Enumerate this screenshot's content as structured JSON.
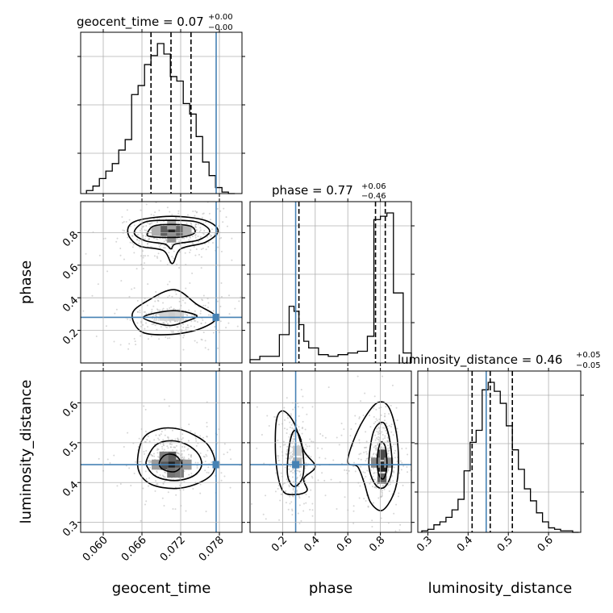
{
  "chart_data": {
    "type": "corner",
    "parameters": [
      "geocent_time",
      "phase",
      "luminosity_distance"
    ],
    "truths": {
      "geocent_time": 0.0775,
      "phase": 0.28,
      "luminosity_distance": 0.445
    },
    "titles": [
      {
        "param": "geocent_time",
        "text": "geocent_time = 0.07",
        "sup": "+0.00",
        "sub": "−0.00"
      },
      {
        "param": "phase",
        "text": "phase = 0.77",
        "sup": "+0.06",
        "sub": "−0.46"
      },
      {
        "param": "luminosity_distance",
        "text": "luminosity_distance = 0.46",
        "sup": "+0.05",
        "sub": "−0.05"
      }
    ],
    "xlabels": [
      "geocent_time",
      "phase",
      "luminosity_distance"
    ],
    "ylabels": [
      "phase",
      "luminosity_distance"
    ],
    "axes": {
      "geocent_time": {
        "range": [
          0.0565,
          0.0815
        ],
        "ticks": [
          0.06,
          0.066,
          0.072,
          0.078
        ],
        "tick_labels": [
          "0.060",
          "0.066",
          "0.072",
          "0.078"
        ]
      },
      "phase": {
        "range": [
          0.0,
          0.99
        ],
        "ticks": [
          0.2,
          0.4,
          0.6,
          0.8
        ],
        "tick_labels": [
          "0.2",
          "0.4",
          "0.6",
          "0.8"
        ]
      },
      "luminosity_distance": {
        "range": [
          0.275,
          0.68
        ],
        "ticks": [
          0.3,
          0.4,
          0.5,
          0.6
        ],
        "tick_labels": [
          "0.3",
          "0.4",
          "0.5",
          "0.6"
        ]
      }
    },
    "marginals": [
      {
        "param": "geocent_time",
        "bin_edges": [
          0.0574,
          0.0584,
          0.0594,
          0.0604,
          0.0614,
          0.0624,
          0.0634,
          0.0644,
          0.0654,
          0.0664,
          0.0674,
          0.0684,
          0.0694,
          0.0704,
          0.0714,
          0.0724,
          0.0734,
          0.0744,
          0.0754,
          0.0764,
          0.0774,
          0.0784,
          0.0794,
          0.0804
        ],
        "counts": [
          0.02,
          0.05,
          0.1,
          0.15,
          0.2,
          0.29,
          0.36,
          0.66,
          0.72,
          0.86,
          0.92,
          1.0,
          0.93,
          0.78,
          0.75,
          0.6,
          0.53,
          0.38,
          0.21,
          0.12,
          0.04,
          0.01,
          0.0
        ],
        "quantiles": [
          0.0674,
          0.0705,
          0.0736
        ]
      },
      {
        "param": "phase",
        "bin_edges": [
          0.0,
          0.06,
          0.12,
          0.18,
          0.24,
          0.27,
          0.3,
          0.33,
          0.36,
          0.42,
          0.48,
          0.54,
          0.6,
          0.66,
          0.72,
          0.76,
          0.8,
          0.84,
          0.88,
          0.94,
          0.99
        ],
        "counts": [
          0.02,
          0.04,
          0.04,
          0.17,
          0.34,
          0.31,
          0.23,
          0.13,
          0.09,
          0.05,
          0.04,
          0.05,
          0.06,
          0.07,
          0.16,
          0.86,
          0.88,
          0.9,
          0.42,
          0.06
        ],
        "quantiles": [
          0.3,
          0.77,
          0.83
        ]
      },
      {
        "param": "luminosity_distance",
        "bin_edges": [
          0.285,
          0.3,
          0.315,
          0.33,
          0.345,
          0.36,
          0.375,
          0.39,
          0.405,
          0.42,
          0.435,
          0.45,
          0.465,
          0.48,
          0.495,
          0.51,
          0.525,
          0.54,
          0.555,
          0.57,
          0.585,
          0.6,
          0.615,
          0.63,
          0.645,
          0.66,
          0.675
        ],
        "counts": [
          0.01,
          0.02,
          0.05,
          0.07,
          0.1,
          0.15,
          0.22,
          0.41,
          0.6,
          0.68,
          0.95,
          1.0,
          0.94,
          0.86,
          0.71,
          0.55,
          0.42,
          0.29,
          0.21,
          0.13,
          0.07,
          0.03,
          0.02,
          0.01,
          0.01,
          0.0
        ],
        "quantiles": [
          0.41,
          0.455,
          0.51
        ]
      }
    ],
    "pairs": [
      {
        "x": "geocent_time",
        "y": "phase",
        "peak_cells": [
          {
            "x": 0.0706,
            "y": 0.81,
            "level": 1.0
          },
          {
            "x": 0.0694,
            "y": 0.81,
            "level": 0.7
          },
          {
            "x": 0.0718,
            "y": 0.81,
            "level": 0.7
          },
          {
            "x": 0.0706,
            "y": 0.77,
            "level": 0.45
          },
          {
            "x": 0.0706,
            "y": 0.85,
            "level": 0.35
          },
          {
            "x": 0.0682,
            "y": 0.81,
            "level": 0.3
          },
          {
            "x": 0.073,
            "y": 0.81,
            "level": 0.3
          },
          {
            "x": 0.0706,
            "y": 0.29,
            "level": 0.15
          },
          {
            "x": 0.0694,
            "y": 0.29,
            "level": 0.12
          },
          {
            "x": 0.0718,
            "y": 0.29,
            "level": 0.12
          }
        ],
        "contours": [
          [
            [
              0.0668,
              0.79
            ],
            [
              0.0678,
              0.84
            ],
            [
              0.0705,
              0.85
            ],
            [
              0.0735,
              0.84
            ],
            [
              0.0742,
              0.8
            ],
            [
              0.0725,
              0.775
            ],
            [
              0.0702,
              0.77
            ],
            [
              0.0675,
              0.775
            ]
          ],
          [
            [
              0.0648,
              0.8
            ],
            [
              0.0665,
              0.865
            ],
            [
              0.0705,
              0.875
            ],
            [
              0.0745,
              0.865
            ],
            [
              0.0765,
              0.81
            ],
            [
              0.0748,
              0.755
            ],
            [
              0.0712,
              0.73
            ],
            [
              0.0705,
              0.7
            ],
            [
              0.0695,
              0.73
            ],
            [
              0.0665,
              0.75
            ]
          ],
          [
            [
              0.0638,
              0.8
            ],
            [
              0.065,
              0.87
            ],
            [
              0.0705,
              0.9
            ],
            [
              0.0758,
              0.875
            ],
            [
              0.0778,
              0.81
            ],
            [
              0.0758,
              0.74
            ],
            [
              0.072,
              0.7
            ],
            [
              0.0707,
              0.61
            ],
            [
              0.0693,
              0.69
            ],
            [
              0.0655,
              0.72
            ]
          ],
          [
            [
              0.0662,
              0.28
            ],
            [
              0.0685,
              0.31
            ],
            [
              0.0715,
              0.32
            ],
            [
              0.0745,
              0.29
            ],
            [
              0.0728,
              0.255
            ],
            [
              0.0705,
              0.23
            ],
            [
              0.0682,
              0.245
            ]
          ],
          [
            [
              0.0645,
              0.3
            ],
            [
              0.0668,
              0.38
            ],
            [
              0.071,
              0.45
            ],
            [
              0.0745,
              0.36
            ],
            [
              0.0775,
              0.28
            ],
            [
              0.075,
              0.21
            ],
            [
              0.0705,
              0.175
            ],
            [
              0.066,
              0.19
            ]
          ]
        ]
      },
      {
        "x": "geocent_time",
        "y": "luminosity_distance",
        "peak_cells": [
          {
            "x": 0.0706,
            "y": 0.445,
            "level": 1.0
          },
          {
            "x": 0.0694,
            "y": 0.445,
            "level": 0.75
          },
          {
            "x": 0.0718,
            "y": 0.445,
            "level": 0.75
          },
          {
            "x": 0.0706,
            "y": 0.465,
            "level": 0.7
          },
          {
            "x": 0.0706,
            "y": 0.425,
            "level": 0.6
          },
          {
            "x": 0.0694,
            "y": 0.465,
            "level": 0.55
          },
          {
            "x": 0.0718,
            "y": 0.425,
            "level": 0.55
          },
          {
            "x": 0.0682,
            "y": 0.445,
            "level": 0.4
          },
          {
            "x": 0.073,
            "y": 0.445,
            "level": 0.4
          }
        ],
        "contours": [
          [
            [
              0.0688,
              0.455
            ],
            [
              0.0697,
              0.47
            ],
            [
              0.0712,
              0.468
            ],
            [
              0.0722,
              0.445
            ],
            [
              0.0712,
              0.428
            ],
            [
              0.0697,
              0.43
            ],
            [
              0.0688,
              0.44
            ]
          ],
          [
            [
              0.0668,
              0.46
            ],
            [
              0.0682,
              0.495
            ],
            [
              0.0705,
              0.505
            ],
            [
              0.073,
              0.495
            ],
            [
              0.0748,
              0.47
            ],
            [
              0.0752,
              0.44
            ],
            [
              0.0738,
              0.415
            ],
            [
              0.071,
              0.405
            ],
            [
              0.0682,
              0.415
            ],
            [
              0.0668,
              0.44
            ]
          ],
          [
            [
              0.0654,
              0.47
            ],
            [
              0.0664,
              0.515
            ],
            [
              0.0688,
              0.535
            ],
            [
              0.0715,
              0.535
            ],
            [
              0.074,
              0.52
            ],
            [
              0.0762,
              0.495
            ],
            [
              0.0773,
              0.455
            ],
            [
              0.0768,
              0.42
            ],
            [
              0.0742,
              0.395
            ],
            [
              0.071,
              0.385
            ],
            [
              0.0675,
              0.395
            ],
            [
              0.0656,
              0.425
            ]
          ]
        ]
      },
      {
        "x": "phase",
        "y": "luminosity_distance",
        "peak_cells": [
          {
            "x": 0.81,
            "y": 0.44,
            "level": 1.0
          },
          {
            "x": 0.81,
            "y": 0.47,
            "level": 0.8
          },
          {
            "x": 0.81,
            "y": 0.41,
            "level": 0.7
          },
          {
            "x": 0.77,
            "y": 0.45,
            "level": 0.5
          },
          {
            "x": 0.85,
            "y": 0.45,
            "level": 0.45
          },
          {
            "x": 0.29,
            "y": 0.45,
            "level": 0.25
          },
          {
            "x": 0.29,
            "y": 0.48,
            "level": 0.15
          }
        ],
        "contours": [
          [
            [
              0.78,
              0.46
            ],
            [
              0.8,
              0.5
            ],
            [
              0.83,
              0.49
            ],
            [
              0.84,
              0.44
            ],
            [
              0.82,
              0.41
            ],
            [
              0.79,
              0.42
            ]
          ],
          [
            [
              0.73,
              0.46
            ],
            [
              0.76,
              0.53
            ],
            [
              0.82,
              0.55
            ],
            [
              0.86,
              0.5
            ],
            [
              0.87,
              0.43
            ],
            [
              0.83,
              0.39
            ],
            [
              0.78,
              0.39
            ],
            [
              0.74,
              0.42
            ]
          ],
          [
            [
              0.6,
              0.45
            ],
            [
              0.63,
              0.5
            ],
            [
              0.7,
              0.56
            ],
            [
              0.78,
              0.6
            ],
            [
              0.85,
              0.59
            ],
            [
              0.9,
              0.52
            ],
            [
              0.91,
              0.43
            ],
            [
              0.88,
              0.37
            ],
            [
              0.81,
              0.33
            ],
            [
              0.74,
              0.35
            ],
            [
              0.7,
              0.4
            ],
            [
              0.66,
              0.44
            ]
          ],
          [
            [
              0.24,
              0.49
            ],
            [
              0.27,
              0.53
            ],
            [
              0.31,
              0.51
            ],
            [
              0.33,
              0.45
            ],
            [
              0.32,
              0.41
            ],
            [
              0.27,
              0.39
            ],
            [
              0.23,
              0.42
            ]
          ],
          [
            [
              0.16,
              0.55
            ],
            [
              0.2,
              0.58
            ],
            [
              0.27,
              0.55
            ],
            [
              0.33,
              0.48
            ],
            [
              0.4,
              0.44
            ],
            [
              0.33,
              0.41
            ],
            [
              0.35,
              0.38
            ],
            [
              0.28,
              0.37
            ],
            [
              0.2,
              0.38
            ],
            [
              0.16,
              0.45
            ]
          ]
        ]
      }
    ]
  }
}
